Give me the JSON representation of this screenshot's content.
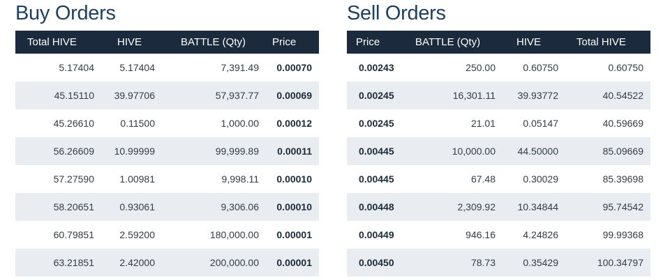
{
  "buy": {
    "title": "Buy Orders",
    "headers": [
      "Total HIVE",
      "HIVE",
      "BATTLE (Qty)",
      "Price"
    ],
    "rows": [
      [
        "5.17404",
        "5.17404",
        "7,391.49",
        "0.00070"
      ],
      [
        "45.15110",
        "39.97706",
        "57,937.77",
        "0.00069"
      ],
      [
        "45.26610",
        "0.11500",
        "1,000.00",
        "0.00012"
      ],
      [
        "56.26609",
        "10.99999",
        "99,999.89",
        "0.00011"
      ],
      [
        "57.27590",
        "1.00981",
        "9,998.11",
        "0.00010"
      ],
      [
        "58.20651",
        "0.93061",
        "9,306.06",
        "0.00010"
      ],
      [
        "60.79851",
        "2.59200",
        "180,000.00",
        "0.00001"
      ],
      [
        "63.21851",
        "2.42000",
        "200,000.00",
        "0.00001"
      ]
    ]
  },
  "sell": {
    "title": "Sell Orders",
    "headers": [
      "Price",
      "BATTLE (Qty)",
      "HIVE",
      "Total HIVE"
    ],
    "rows": [
      [
        "0.00243",
        "250.00",
        "0.60750",
        "0.60750"
      ],
      [
        "0.00245",
        "16,301.11",
        "39.93772",
        "40.54522"
      ],
      [
        "0.00245",
        "21.01",
        "0.05147",
        "40.59669"
      ],
      [
        "0.00445",
        "10,000.00",
        "44.50000",
        "85.09669"
      ],
      [
        "0.00445",
        "67.48",
        "0.30029",
        "85.39698"
      ],
      [
        "0.00448",
        "2,309.92",
        "10.34844",
        "95.74542"
      ],
      [
        "0.00449",
        "946.16",
        "4.24826",
        "99.99368"
      ],
      [
        "0.00450",
        "78.73",
        "0.35429",
        "100.34797"
      ]
    ]
  },
  "colors": {
    "title": "#1f3f5e",
    "header_bg": "#1b2b3d",
    "stripe": "#e9edf1"
  }
}
